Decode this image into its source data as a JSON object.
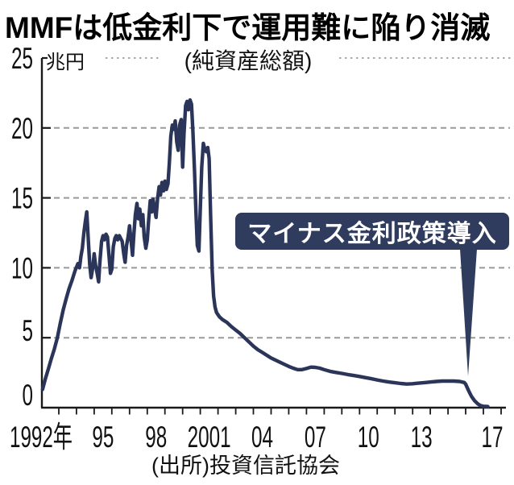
{
  "title": "MMFは低金利下で運用難に陥り消滅",
  "chart": {
    "unit_label": "兆円",
    "subtitle": "(純資産総額)",
    "annotation": "マイナス金利政策導入",
    "source": "(出所)投資信託協会"
  },
  "colors": {
    "line": "#2a3559",
    "annotation_bg": "#303c5e",
    "annotation_text": "#ffffff",
    "grid_dash": "#999999",
    "grid_dot": "#aaaaaa",
    "axis": "#1a1a1a"
  },
  "chart_data": {
    "type": "line",
    "title": "MMFは低金利下で運用難に陥り消滅",
    "subtitle": "(純資産総額)",
    "unit": "兆円",
    "ylim": [
      0,
      25
    ],
    "y_ticks": [
      0,
      5,
      10,
      15,
      20,
      25
    ],
    "x_range": [
      1992,
      2018
    ],
    "grid": "dashed-horizontal",
    "legend": "none",
    "source": "(出所)投資信託協会",
    "x_tick_labels": [
      {
        "label": "1992年",
        "x_year": 1992.0
      },
      {
        "label": "95",
        "x_year": 1995.5
      },
      {
        "label": "98",
        "x_year": 1998.5
      },
      {
        "label": "2001",
        "x_year": 2001.5
      },
      {
        "label": "04",
        "x_year": 2004.5
      },
      {
        "label": "07",
        "x_year": 2007.5
      },
      {
        "label": "10",
        "x_year": 2010.5
      },
      {
        "label": "13",
        "x_year": 2013.5
      },
      {
        "label": "17",
        "x_year": 2017.5
      }
    ],
    "annotations": [
      {
        "text": "マイナス金利政策導入",
        "x_year": 2016.0,
        "y_value": 1.9
      }
    ],
    "series": [
      {
        "name": "MMF純資産総額(兆円)",
        "points": [
          [
            1992.08,
            1.3
          ],
          [
            1992.25,
            2.1
          ],
          [
            1992.42,
            2.8
          ],
          [
            1992.58,
            3.5
          ],
          [
            1992.75,
            4.2
          ],
          [
            1992.92,
            5.0
          ],
          [
            1993.08,
            6.0
          ],
          [
            1993.25,
            7.0
          ],
          [
            1993.42,
            7.8
          ],
          [
            1993.58,
            8.5
          ],
          [
            1993.75,
            9.1
          ],
          [
            1993.92,
            9.8
          ],
          [
            1994.08,
            10.3
          ],
          [
            1994.17,
            10.0
          ],
          [
            1994.25,
            10.8
          ],
          [
            1994.33,
            11.4
          ],
          [
            1994.42,
            12.5
          ],
          [
            1994.5,
            13.3
          ],
          [
            1994.58,
            14.0
          ],
          [
            1994.67,
            12.0
          ],
          [
            1994.75,
            10.2
          ],
          [
            1994.83,
            9.3
          ],
          [
            1994.92,
            10.0
          ],
          [
            1995.0,
            11.0
          ],
          [
            1995.08,
            10.2
          ],
          [
            1995.17,
            9.6
          ],
          [
            1995.25,
            9.0
          ],
          [
            1995.33,
            10.5
          ],
          [
            1995.42,
            11.9
          ],
          [
            1995.5,
            12.3
          ],
          [
            1995.58,
            12.0
          ],
          [
            1995.67,
            12.4
          ],
          [
            1995.75,
            12.2
          ],
          [
            1995.83,
            11.0
          ],
          [
            1995.92,
            9.6
          ],
          [
            1996.0,
            9.9
          ],
          [
            1996.08,
            11.5
          ],
          [
            1996.17,
            12.1
          ],
          [
            1996.25,
            12.3
          ],
          [
            1996.33,
            12.0
          ],
          [
            1996.42,
            12.3
          ],
          [
            1996.5,
            12.1
          ],
          [
            1996.58,
            11.9
          ],
          [
            1996.67,
            11.0
          ],
          [
            1996.75,
            10.4
          ],
          [
            1996.83,
            11.6
          ],
          [
            1996.92,
            12.2
          ],
          [
            1997.0,
            13.0
          ],
          [
            1997.08,
            12.0
          ],
          [
            1997.17,
            10.9
          ],
          [
            1997.25,
            12.5
          ],
          [
            1997.33,
            13.8
          ],
          [
            1997.42,
            14.6
          ],
          [
            1997.5,
            13.5
          ],
          [
            1997.58,
            14.2
          ],
          [
            1997.67,
            13.0
          ],
          [
            1997.75,
            13.8
          ],
          [
            1997.83,
            12.2
          ],
          [
            1997.92,
            11.4
          ],
          [
            1998.0,
            12.0
          ],
          [
            1998.08,
            13.4
          ],
          [
            1998.17,
            14.8
          ],
          [
            1998.25,
            14.0
          ],
          [
            1998.33,
            14.9
          ],
          [
            1998.42,
            14.2
          ],
          [
            1998.5,
            13.6
          ],
          [
            1998.58,
            14.9
          ],
          [
            1998.67,
            15.8
          ],
          [
            1998.75,
            15.2
          ],
          [
            1998.83,
            16.1
          ],
          [
            1998.92,
            15.5
          ],
          [
            1999.0,
            16.2
          ],
          [
            1999.08,
            15.6
          ],
          [
            1999.17,
            16.0
          ],
          [
            1999.25,
            17.5
          ],
          [
            1999.33,
            19.4
          ],
          [
            1999.42,
            20.2
          ],
          [
            1999.5,
            19.9
          ],
          [
            1999.58,
            20.5
          ],
          [
            1999.67,
            19.0
          ],
          [
            1999.75,
            18.4
          ],
          [
            1999.83,
            20.2
          ],
          [
            1999.92,
            20.6
          ],
          [
            2000.0,
            17.2
          ],
          [
            2000.08,
            19.6
          ],
          [
            2000.17,
            21.6
          ],
          [
            2000.25,
            21.9
          ],
          [
            2000.33,
            21.3
          ],
          [
            2000.42,
            22.0
          ],
          [
            2000.5,
            21.7
          ],
          [
            2000.58,
            19.8
          ],
          [
            2000.67,
            17.0
          ],
          [
            2000.75,
            14.0
          ],
          [
            2000.83,
            11.6
          ],
          [
            2000.92,
            11.2
          ],
          [
            2001.0,
            14.2
          ],
          [
            2001.08,
            17.2
          ],
          [
            2001.17,
            18.9
          ],
          [
            2001.25,
            18.5
          ],
          [
            2001.33,
            18.3
          ],
          [
            2001.42,
            18.6
          ],
          [
            2001.5,
            17.8
          ],
          [
            2001.58,
            13.8
          ],
          [
            2001.67,
            9.8
          ],
          [
            2001.75,
            8.0
          ],
          [
            2001.83,
            7.2
          ],
          [
            2001.92,
            6.8
          ],
          [
            2002.08,
            6.5
          ],
          [
            2002.25,
            6.3
          ],
          [
            2002.5,
            6.1
          ],
          [
            2002.75,
            5.8
          ],
          [
            2003.0,
            5.55
          ],
          [
            2003.25,
            5.3
          ],
          [
            2003.5,
            5.0
          ],
          [
            2003.75,
            4.7
          ],
          [
            2004.0,
            4.4
          ],
          [
            2004.25,
            4.15
          ],
          [
            2004.5,
            3.95
          ],
          [
            2004.75,
            3.75
          ],
          [
            2005.0,
            3.55
          ],
          [
            2005.25,
            3.4
          ],
          [
            2005.5,
            3.25
          ],
          [
            2005.75,
            3.1
          ],
          [
            2006.0,
            2.95
          ],
          [
            2006.25,
            2.82
          ],
          [
            2006.5,
            2.72
          ],
          [
            2006.75,
            2.72
          ],
          [
            2007.0,
            2.8
          ],
          [
            2007.25,
            2.9
          ],
          [
            2007.5,
            2.88
          ],
          [
            2007.75,
            2.82
          ],
          [
            2008.0,
            2.72
          ],
          [
            2008.33,
            2.6
          ],
          [
            2008.67,
            2.52
          ],
          [
            2009.0,
            2.45
          ],
          [
            2009.33,
            2.37
          ],
          [
            2009.67,
            2.3
          ],
          [
            2010.0,
            2.23
          ],
          [
            2010.33,
            2.15
          ],
          [
            2010.67,
            2.07
          ],
          [
            2011.0,
            1.98
          ],
          [
            2011.33,
            1.9
          ],
          [
            2011.67,
            1.83
          ],
          [
            2012.0,
            1.78
          ],
          [
            2012.33,
            1.73
          ],
          [
            2012.67,
            1.69
          ],
          [
            2013.0,
            1.71
          ],
          [
            2013.33,
            1.75
          ],
          [
            2013.67,
            1.79
          ],
          [
            2014.0,
            1.83
          ],
          [
            2014.33,
            1.87
          ],
          [
            2014.67,
            1.9
          ],
          [
            2015.0,
            1.9
          ],
          [
            2015.33,
            1.9
          ],
          [
            2015.67,
            1.87
          ],
          [
            2015.92,
            1.8
          ],
          [
            2016.0,
            1.68
          ],
          [
            2016.08,
            1.45
          ],
          [
            2016.17,
            1.2
          ],
          [
            2016.25,
            1.0
          ],
          [
            2016.33,
            0.8
          ],
          [
            2016.5,
            0.5
          ],
          [
            2016.67,
            0.28
          ],
          [
            2016.83,
            0.15
          ],
          [
            2017.0,
            0.1
          ],
          [
            2017.25,
            0.08
          ]
        ]
      }
    ]
  }
}
